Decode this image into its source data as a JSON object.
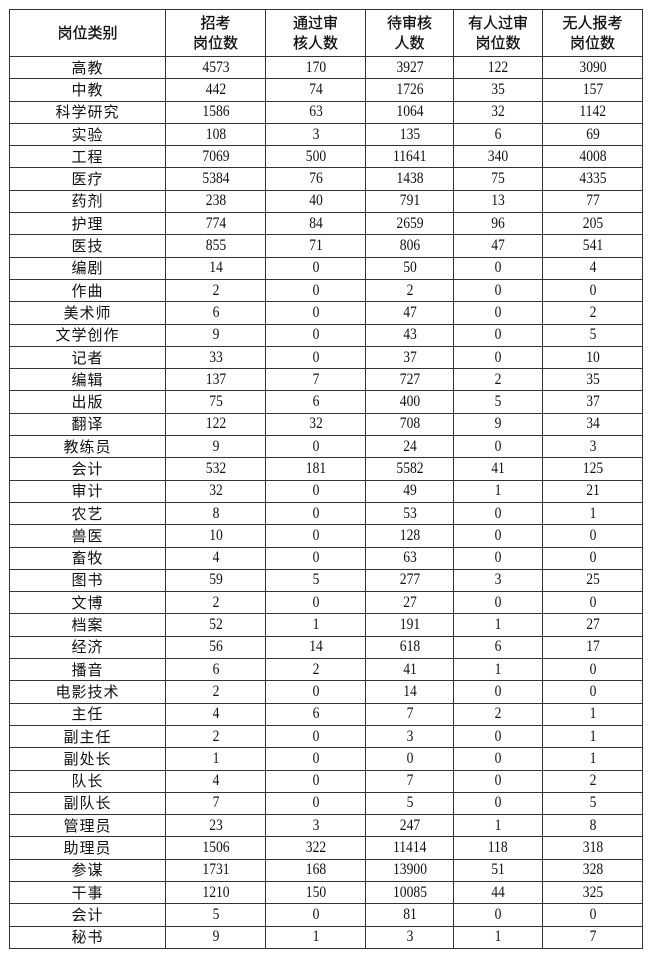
{
  "headers": [
    "岗位类别",
    "招考\n岗位数",
    "通过审\n核人数",
    "待审核\n人数",
    "有人过审\n岗位数",
    "无人报考\n岗位数"
  ],
  "rows": [
    [
      "高教",
      "4573",
      "170",
      "3927",
      "122",
      "3090"
    ],
    [
      "中教",
      "442",
      "74",
      "1726",
      "35",
      "157"
    ],
    [
      "科学研究",
      "1586",
      "63",
      "1064",
      "32",
      "1142"
    ],
    [
      "实验",
      "108",
      "3",
      "135",
      "6",
      "69"
    ],
    [
      "工程",
      "7069",
      "500",
      "11641",
      "340",
      "4008"
    ],
    [
      "医疗",
      "5384",
      "76",
      "1438",
      "75",
      "4335"
    ],
    [
      "药剂",
      "238",
      "40",
      "791",
      "13",
      "77"
    ],
    [
      "护理",
      "774",
      "84",
      "2659",
      "96",
      "205"
    ],
    [
      "医技",
      "855",
      "71",
      "806",
      "47",
      "541"
    ],
    [
      "编剧",
      "14",
      "0",
      "50",
      "0",
      "4"
    ],
    [
      "作曲",
      "2",
      "0",
      "2",
      "0",
      "0"
    ],
    [
      "美术师",
      "6",
      "0",
      "47",
      "0",
      "2"
    ],
    [
      "文学创作",
      "9",
      "0",
      "43",
      "0",
      "5"
    ],
    [
      "记者",
      "33",
      "0",
      "37",
      "0",
      "10"
    ],
    [
      "编辑",
      "137",
      "7",
      "727",
      "2",
      "35"
    ],
    [
      "出版",
      "75",
      "6",
      "400",
      "5",
      "37"
    ],
    [
      "翻译",
      "122",
      "32",
      "708",
      "9",
      "34"
    ],
    [
      "教练员",
      "9",
      "0",
      "24",
      "0",
      "3"
    ],
    [
      "会计",
      "532",
      "181",
      "5582",
      "41",
      "125"
    ],
    [
      "审计",
      "32",
      "0",
      "49",
      "1",
      "21"
    ],
    [
      "农艺",
      "8",
      "0",
      "53",
      "0",
      "1"
    ],
    [
      "兽医",
      "10",
      "0",
      "128",
      "0",
      "0"
    ],
    [
      "畜牧",
      "4",
      "0",
      "63",
      "0",
      "0"
    ],
    [
      "图书",
      "59",
      "5",
      "277",
      "3",
      "25"
    ],
    [
      "文博",
      "2",
      "0",
      "27",
      "0",
      "0"
    ],
    [
      "档案",
      "52",
      "1",
      "191",
      "1",
      "27"
    ],
    [
      "经济",
      "56",
      "14",
      "618",
      "6",
      "17"
    ],
    [
      "播音",
      "6",
      "2",
      "41",
      "1",
      "0"
    ],
    [
      "电影技术",
      "2",
      "0",
      "14",
      "0",
      "0"
    ],
    [
      "主任",
      "4",
      "6",
      "7",
      "2",
      "1"
    ],
    [
      "副主任",
      "2",
      "0",
      "3",
      "0",
      "1"
    ],
    [
      "副处长",
      "1",
      "0",
      "0",
      "0",
      "1"
    ],
    [
      "队长",
      "4",
      "0",
      "7",
      "0",
      "2"
    ],
    [
      "副队长",
      "7",
      "0",
      "5",
      "0",
      "5"
    ],
    [
      "管理员",
      "23",
      "3",
      "247",
      "1",
      "8"
    ],
    [
      "助理员",
      "1506",
      "322",
      "11414",
      "118",
      "318"
    ],
    [
      "参谋",
      "1731",
      "168",
      "13900",
      "51",
      "328"
    ],
    [
      "干事",
      "1210",
      "150",
      "10085",
      "44",
      "325"
    ],
    [
      "会计",
      "5",
      "0",
      "81",
      "0",
      "0"
    ],
    [
      "秘书",
      "9",
      "1",
      "3",
      "1",
      "7"
    ]
  ]
}
